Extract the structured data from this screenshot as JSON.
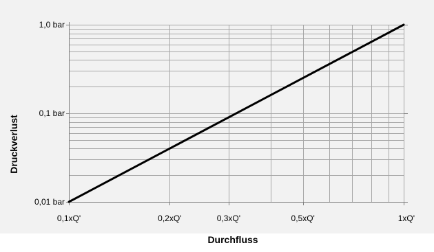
{
  "chart_data": {
    "type": "line",
    "title": "",
    "xlabel": "Durchfluss",
    "ylabel": "Druckverlust",
    "x_scale": "log",
    "y_scale": "log",
    "xlim": [
      0.1,
      1.0
    ],
    "ylim": [
      0.01,
      1.0
    ],
    "grid": true,
    "legend": "none",
    "x_ticks": [
      {
        "value": 0.1,
        "label": "0,1xQ'"
      },
      {
        "value": 0.2,
        "label": "0,2xQ'"
      },
      {
        "value": 0.3,
        "label": "0,3xQ'"
      },
      {
        "value": 0.5,
        "label": "0,5xQ'"
      },
      {
        "value": 1.0,
        "label": "1xQ'"
      }
    ],
    "y_ticks": [
      {
        "value": 0.01,
        "label": "0,01 bar"
      },
      {
        "value": 0.1,
        "label": "0,1 bar"
      },
      {
        "value": 1.0,
        "label": "1,0 bar"
      }
    ],
    "x_grid": [
      0.1,
      0.2,
      0.3,
      0.4,
      0.5,
      0.6,
      0.7,
      0.8,
      0.9,
      1.0
    ],
    "y_grid": [
      0.01,
      0.02,
      0.03,
      0.04,
      0.05,
      0.06,
      0.07,
      0.08,
      0.09,
      0.1,
      0.2,
      0.3,
      0.4,
      0.5,
      0.6,
      0.7,
      0.8,
      0.9,
      1.0
    ],
    "series": [
      {
        "x": [
          0.1,
          1.0
        ],
        "y": [
          0.01,
          1.0
        ]
      }
    ],
    "colors": {
      "background": "#f2f2f2",
      "grid": "#a6a6a6",
      "axis": "#7f7f7f",
      "line": "#000000",
      "text": "#000000"
    }
  }
}
